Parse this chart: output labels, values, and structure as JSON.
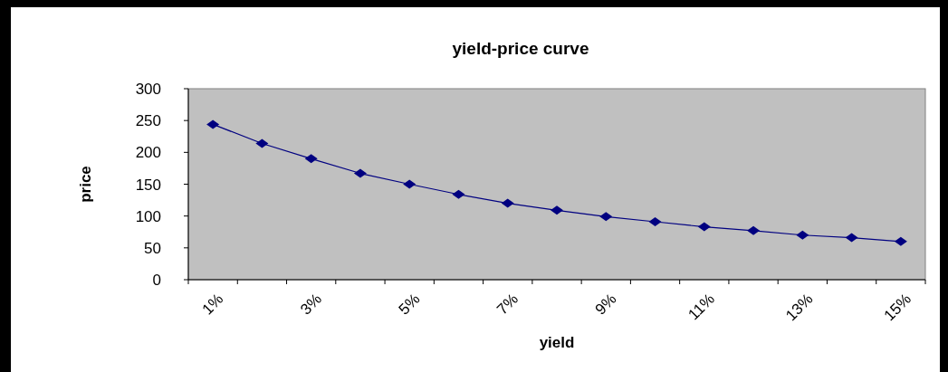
{
  "chart_data": {
    "type": "line",
    "title": "yield-price curve",
    "xlabel": "yield",
    "ylabel": "price",
    "categories": [
      "1%",
      null,
      "3%",
      null,
      "5%",
      null,
      "7%",
      null,
      "9%",
      null,
      "11%",
      null,
      "13%",
      null,
      "15%"
    ],
    "series": [
      {
        "color": "#000080",
        "values": [
          244,
          214,
          190,
          167,
          150,
          134,
          120,
          109,
          99,
          91,
          83,
          77,
          70,
          66,
          60
        ]
      }
    ],
    "ylim": [
      0,
      300
    ],
    "yticks": [
      0,
      50,
      100,
      150,
      200,
      250,
      300
    ],
    "marker": "diamond",
    "grid": false
  }
}
